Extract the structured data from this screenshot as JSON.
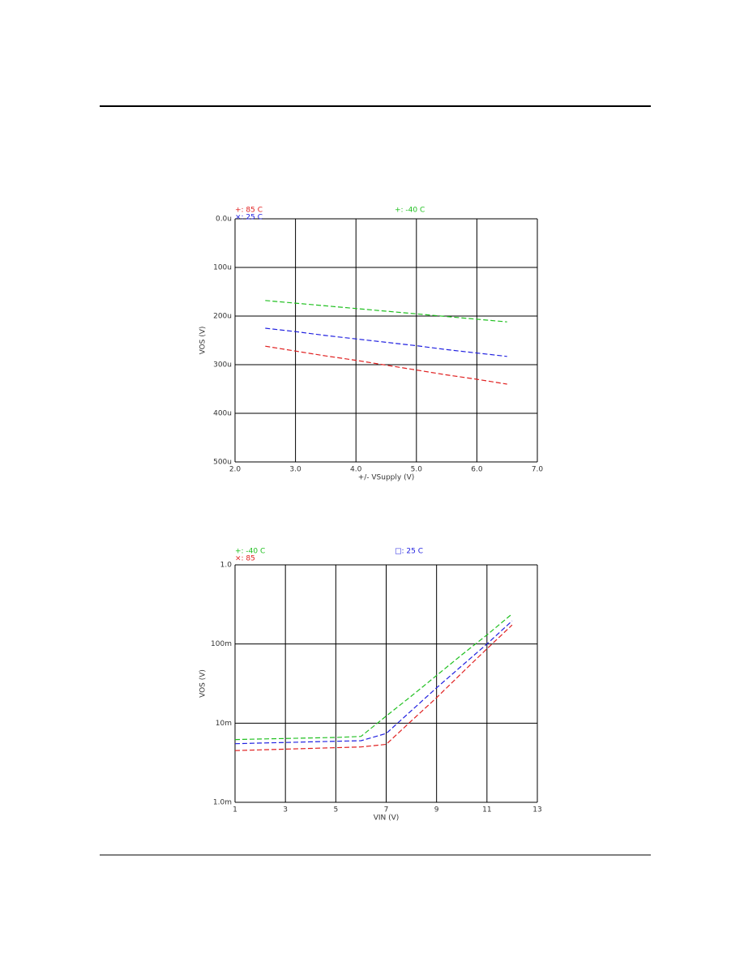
{
  "chart_data": [
    {
      "type": "line",
      "y_label": "VOS (V)",
      "x_label": "+/- VSupply (V)",
      "x": [
        2.5,
        3.0,
        3.5,
        4.0,
        4.5,
        5.0,
        5.5,
        6.0,
        6.5
      ],
      "series": [
        {
          "name": "+: 85 C",
          "color": "#e02020",
          "values": [
            262,
            272,
            282,
            291,
            301,
            311,
            321,
            330,
            340
          ]
        },
        {
          "name": "×: 25 C",
          "color": "#2020e0",
          "values": [
            225,
            232,
            240,
            247,
            254,
            261,
            269,
            276,
            283
          ]
        },
        {
          "name": "+: -40 C",
          "color": "#20c020",
          "values": [
            168,
            173.5,
            179,
            184.5,
            190,
            195.5,
            201,
            206.5,
            212
          ]
        }
      ],
      "xlim": [
        2,
        7
      ],
      "xticks": [
        {
          "value": 2,
          "label": "2.0"
        },
        {
          "value": 3,
          "label": "3.0"
        },
        {
          "value": 4,
          "label": "4.0"
        },
        {
          "value": 5,
          "label": "5.0"
        },
        {
          "value": 6,
          "label": "6.0"
        },
        {
          "value": 7,
          "label": "7.0"
        }
      ],
      "ylim": [
        0,
        500
      ],
      "y_inverted": true,
      "yticks": [
        {
          "value": 0,
          "label": "0.0u"
        },
        {
          "value": 100,
          "label": "100u"
        },
        {
          "value": 200,
          "label": "200u"
        },
        {
          "value": 300,
          "label": "300u"
        },
        {
          "value": 400,
          "label": "400u"
        },
        {
          "value": 500,
          "label": "500u"
        }
      ],
      "grid": true
    },
    {
      "type": "line",
      "y_label": "VOS (V)",
      "x_label": "VIN (V)",
      "x": [
        1,
        2,
        3,
        4,
        5,
        6,
        7,
        8,
        9,
        10,
        11,
        12
      ],
      "series": [
        {
          "name": "+: -40 C",
          "color": "#20c020",
          "values": [
            0.0062,
            0.0063,
            0.0064,
            0.0065,
            0.0066,
            0.0068,
            0.0123,
            0.022,
            0.04,
            0.073,
            0.13,
            0.24
          ]
        },
        {
          "name": "×: 85",
          "color": "#e02020",
          "values": [
            0.0045,
            0.0046,
            0.0047,
            0.0048,
            0.0049,
            0.005,
            0.0054,
            0.0107,
            0.021,
            0.043,
            0.087,
            0.174
          ]
        },
        {
          "name": "□: 25 C",
          "color": "#2020e0",
          "values": [
            0.0055,
            0.0056,
            0.0057,
            0.0058,
            0.0059,
            0.006,
            0.0074,
            0.0144,
            0.028,
            0.053,
            0.1,
            0.196
          ]
        }
      ],
      "xlim": [
        1,
        13
      ],
      "xticks": [
        1,
        3,
        5,
        7,
        9,
        11,
        13
      ],
      "ylim": [
        0.001,
        1
      ],
      "y_log": true,
      "yticks": [
        {
          "value": 0.001,
          "label": "1.0m"
        },
        {
          "value": 0.01,
          "label": "10m"
        },
        {
          "value": 0.1,
          "label": "100m"
        },
        {
          "value": 1,
          "label": "1.0"
        }
      ],
      "grid": true
    }
  ]
}
